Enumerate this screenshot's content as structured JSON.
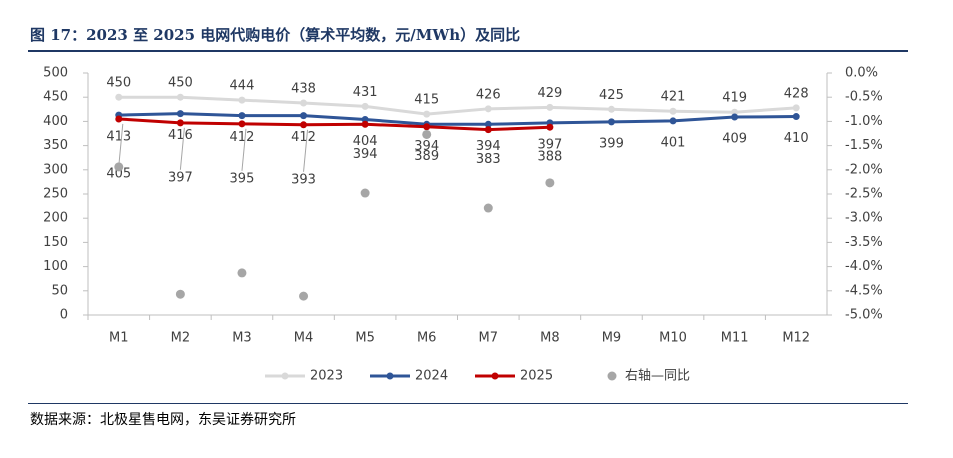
{
  "title": "图 17：2023 至 2025 电网代购电价（算术平均数，元/MWh）及同比",
  "source": "数据来源：北极星售电网，东吴证券研究所",
  "chart_data": {
    "type": "line",
    "categories": [
      "M1",
      "M2",
      "M3",
      "M4",
      "M5",
      "M6",
      "M7",
      "M8",
      "M9",
      "M10",
      "M11",
      "M12"
    ],
    "series": [
      {
        "name": "2023",
        "color": "#d9d9d9",
        "values": [
          450,
          450,
          444,
          438,
          431,
          415,
          426,
          429,
          425,
          421,
          419,
          428
        ]
      },
      {
        "name": "2024",
        "color": "#2f5597",
        "values": [
          413,
          416,
          412,
          412,
          404,
          394,
          394,
          397,
          399,
          401,
          409,
          410
        ]
      },
      {
        "name": "2025",
        "color": "#c00000",
        "values": [
          405,
          397,
          395,
          393,
          394,
          389,
          383,
          388,
          null,
          null,
          null,
          null
        ]
      },
      {
        "name": "右轴—同比",
        "type": "scatter",
        "axis": "y2",
        "color": "#a6a6a6",
        "values": [
          -1.94,
          -4.57,
          -4.13,
          -4.61,
          -2.48,
          -1.27,
          -2.79,
          -2.27,
          null,
          null,
          null,
          null
        ]
      }
    ],
    "ylim": [
      0,
      500
    ],
    "yticks": [
      0,
      50,
      100,
      150,
      200,
      250,
      300,
      350,
      400,
      450,
      500
    ],
    "y2lim": [
      -5,
      0
    ],
    "y2ticks": [
      {
        "value": 0,
        "label": "0.0%"
      },
      {
        "value": -0.5,
        "label": "-0.5%"
      },
      {
        "value": -1,
        "label": "-1.0%"
      },
      {
        "value": -1.5,
        "label": "-1.5%"
      },
      {
        "value": -2,
        "label": "-2.0%"
      },
      {
        "value": -2.5,
        "label": "-2.5%"
      },
      {
        "value": -3,
        "label": "-3.0%"
      },
      {
        "value": -3.5,
        "label": "-3.5%"
      },
      {
        "value": -4,
        "label": "-4.0%"
      },
      {
        "value": -4.5,
        "label": "-4.5%"
      },
      {
        "value": -5,
        "label": "-5.0%"
      }
    ],
    "legend": "bottom"
  }
}
